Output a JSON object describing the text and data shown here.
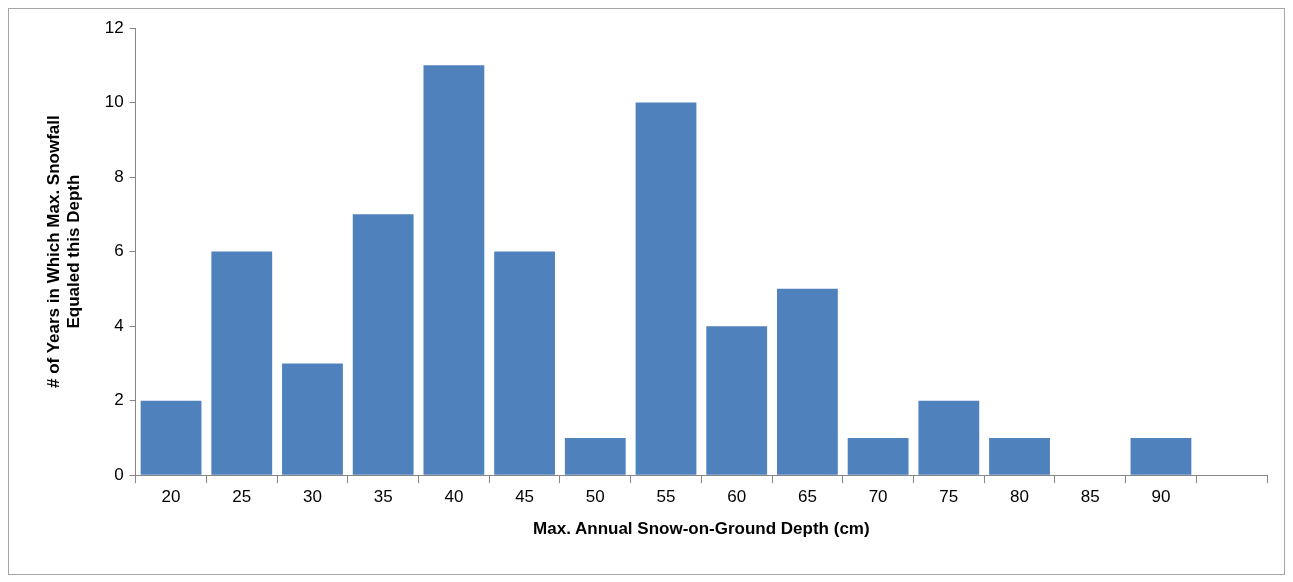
{
  "chart_data": {
    "type": "bar",
    "xlabel": "Max. Annual Snow-on-Ground Depth (cm)",
    "ylabel": "# of Years in Which Max. Snowfall\nEqualed this Depth",
    "categories": [
      "20",
      "25",
      "30",
      "35",
      "40",
      "45",
      "50",
      "55",
      "60",
      "65",
      "70",
      "75",
      "80",
      "85",
      "90",
      null
    ],
    "values": [
      2,
      6,
      3,
      7,
      11,
      6,
      1,
      10,
      4,
      5,
      1,
      2,
      1,
      0,
      1,
      null
    ],
    "color": "#4f81bd",
    "ylim": [
      0,
      12
    ],
    "yticks": [
      0,
      2,
      4,
      6,
      8,
      10,
      12
    ],
    "grid": false,
    "legend": false
  }
}
